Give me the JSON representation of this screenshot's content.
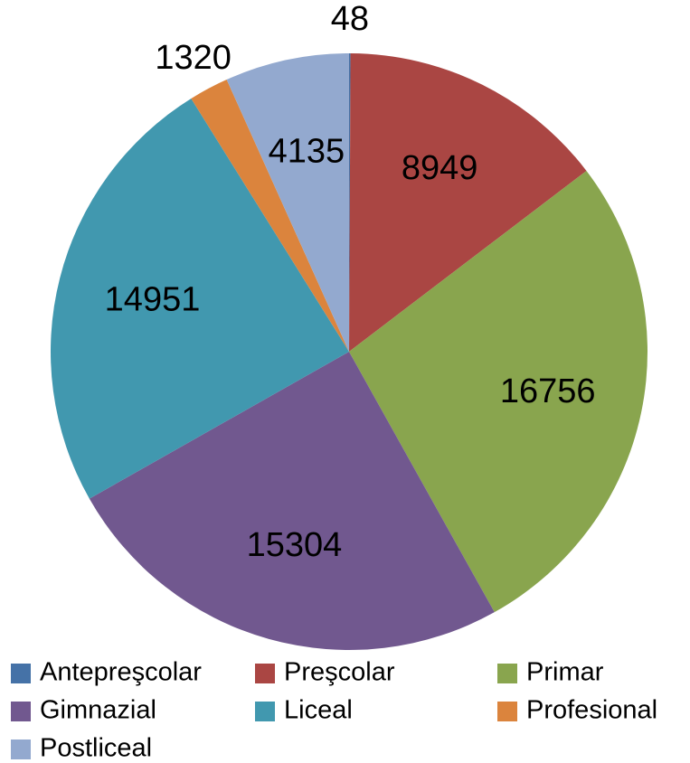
{
  "chart_data": {
    "type": "pie",
    "categories": [
      "Antepreşcolar",
      "Preşcolar",
      "Primar",
      "Gimnazial",
      "Liceal",
      "Profesional",
      "Postliceal"
    ],
    "values": [
      48,
      8949,
      16756,
      15304,
      14951,
      1320,
      4135
    ],
    "colors": [
      "#4572a7",
      "#aa4643",
      "#89a54e",
      "#71588f",
      "#4198af",
      "#db843d",
      "#93a9cf"
    ],
    "legend": "bottom"
  }
}
